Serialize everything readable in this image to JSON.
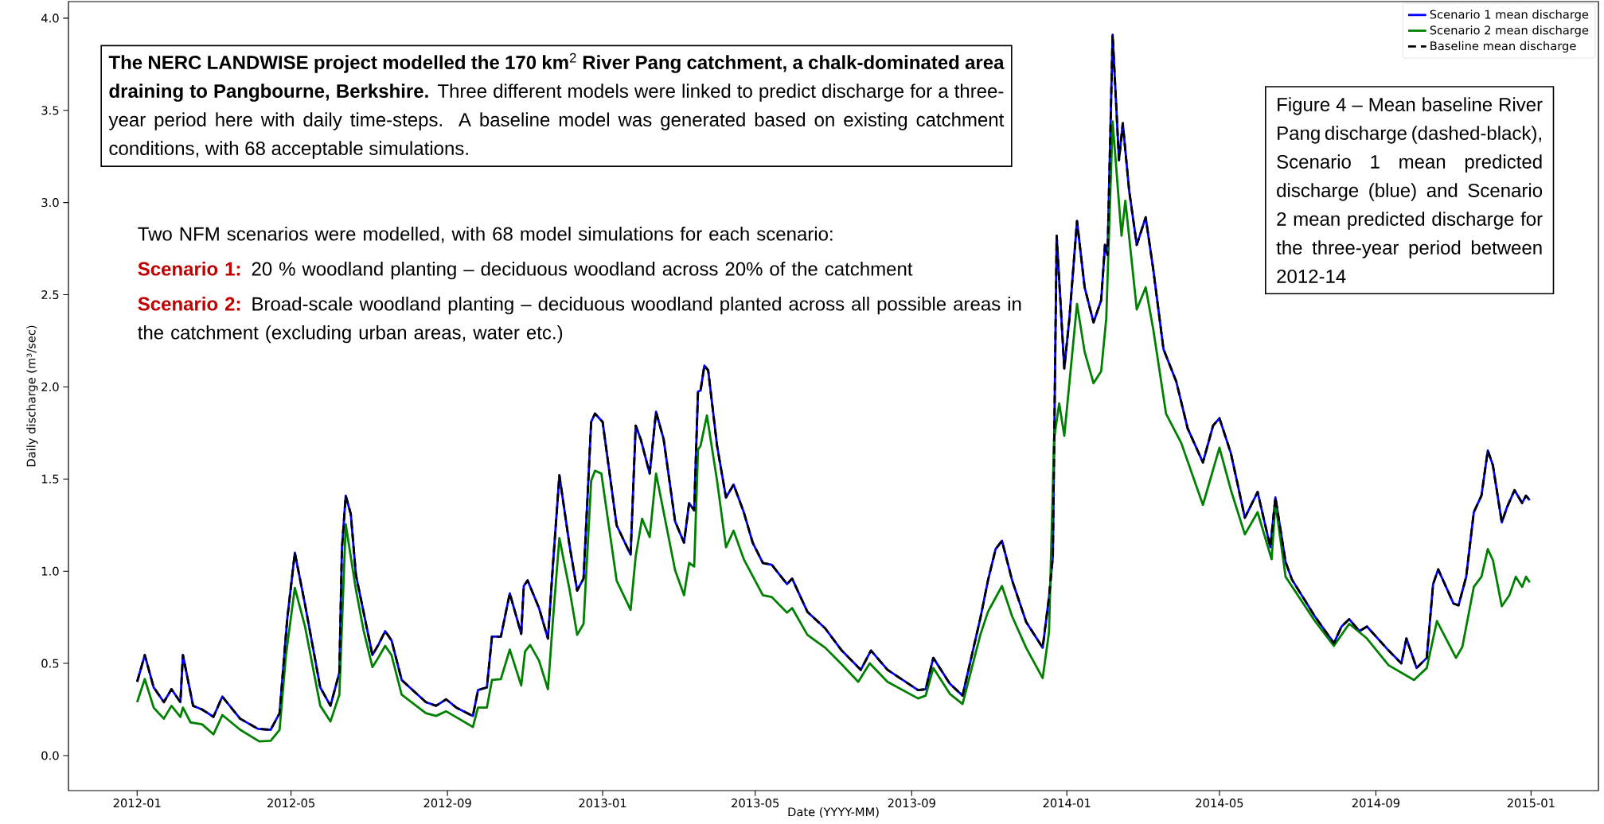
{
  "chart_data": {
    "type": "line",
    "xlabel": "Date (YYYY-MM)",
    "ylabel": "Daily discharge (m³/sec)",
    "xlim": [
      "2011-11-08",
      "2015-02-23"
    ],
    "ylim": [
      -0.19,
      4.09
    ],
    "xticks": [
      "2012-01",
      "2012-05",
      "2012-09",
      "2013-01",
      "2013-05",
      "2013-09",
      "2014-01",
      "2014-05",
      "2014-09",
      "2015-01"
    ],
    "yticks": [
      {
        "value": 0,
        "label": "0.0"
      },
      {
        "value": 0.5,
        "label": "0.5"
      },
      {
        "value": 1,
        "label": "1.0"
      },
      {
        "value": 1.5,
        "label": "1.5"
      },
      {
        "value": 2,
        "label": "2.0"
      },
      {
        "value": 2.5,
        "label": "2.5"
      },
      {
        "value": 3,
        "label": "3.0"
      },
      {
        "value": 3.5,
        "label": "3.5"
      },
      {
        "value": 4,
        "label": "4.0"
      }
    ],
    "legend": "top right",
    "x": [
      "2012-01-01",
      "2012-01-07",
      "2012-01-14",
      "2012-01-22",
      "2012-01-28",
      "2012-02-04",
      "2012-02-06",
      "2012-02-14",
      "2012-02-21",
      "2012-03-01",
      "2012-03-08",
      "2012-03-22",
      "2012-04-05",
      "2012-04-15",
      "2012-04-22",
      "2012-04-28",
      "2012-05-04",
      "2012-05-12",
      "2012-05-24",
      "2012-06-01",
      "2012-06-08",
      "2012-06-10",
      "2012-06-13",
      "2012-06-17",
      "2012-06-21",
      "2012-06-27",
      "2012-07-04",
      "2012-07-09",
      "2012-07-14",
      "2012-07-19",
      "2012-07-27",
      "2012-08-15",
      "2012-08-23",
      "2012-08-31",
      "2012-09-08",
      "2012-09-21",
      "2012-09-25",
      "2012-10-02",
      "2012-10-06",
      "2012-10-13",
      "2012-10-17",
      "2012-10-20",
      "2012-10-29",
      "2012-10-31",
      "2012-11-03",
      "2012-11-12",
      "2012-11-19",
      "2012-11-23",
      "2012-11-28",
      "2012-12-06",
      "2012-12-12",
      "2012-12-17",
      "2012-12-23",
      "2012-12-26",
      "2013-01-01",
      "2013-01-12",
      "2013-01-23",
      "2013-01-27",
      "2013-01-31",
      "2013-02-07",
      "2013-02-12",
      "2013-02-18",
      "2013-02-27",
      "2013-03-06",
      "2013-03-10",
      "2013-03-14",
      "2013-03-17",
      "2013-03-19",
      "2013-03-22",
      "2013-03-25",
      "2013-04-01",
      "2013-04-08",
      "2013-04-14",
      "2013-04-22",
      "2013-04-29",
      "2013-05-07",
      "2013-05-14",
      "2013-05-26",
      "2013-05-30",
      "2013-06-11",
      "2013-06-25",
      "2013-07-08",
      "2013-07-23",
      "2013-07-31",
      "2013-08-13",
      "2013-09-06",
      "2013-09-12",
      "2013-09-18",
      "2013-10-01",
      "2013-10-11",
      "2013-10-25",
      "2013-10-31",
      "2013-11-06",
      "2013-11-11",
      "2013-11-19",
      "2013-11-30",
      "2013-12-13",
      "2013-12-18",
      "2013-12-21",
      "2013-12-24",
      "2013-12-30",
      "2014-01-03",
      "2014-01-09",
      "2014-01-15",
      "2014-01-22",
      "2014-01-28",
      "2014-01-31",
      "2014-02-02",
      "2014-02-06",
      "2014-02-11",
      "2014-02-14",
      "2014-02-19",
      "2014-02-25",
      "2014-03-04",
      "2014-03-10",
      "2014-03-18",
      "2014-03-28",
      "2014-04-06",
      "2014-04-18",
      "2014-04-26",
      "2014-05-01",
      "2014-05-10",
      "2014-05-21",
      "2014-05-31",
      "2014-06-10",
      "2014-06-14",
      "2014-06-22",
      "2014-06-27",
      "2014-07-15",
      "2014-07-30",
      "2014-08-05",
      "2014-08-11",
      "2014-08-19",
      "2014-08-25",
      "2014-09-11",
      "2014-09-21",
      "2014-09-25",
      "2014-10-03",
      "2014-10-11",
      "2014-10-16",
      "2014-10-20",
      "2014-11-01",
      "2014-11-05",
      "2014-11-11",
      "2014-11-17",
      "2014-11-23",
      "2014-11-28",
      "2014-12-02",
      "2014-12-09",
      "2014-12-13",
      "2014-12-19",
      "2014-12-25",
      "2014-12-28",
      "2014-12-31"
    ],
    "series": [
      {
        "name": "Scenario 1 mean discharge",
        "color": "#0000ff",
        "line_style": "solid",
        "values": [
          0.4,
          0.545,
          0.37,
          0.29,
          0.36,
          0.29,
          0.545,
          0.27,
          0.25,
          0.21,
          0.32,
          0.2,
          0.145,
          0.14,
          0.23,
          0.74,
          1.1,
          0.82,
          0.37,
          0.27,
          0.45,
          1.12,
          1.41,
          1.31,
          0.98,
          0.78,
          0.545,
          0.605,
          0.675,
          0.625,
          0.41,
          0.29,
          0.27,
          0.305,
          0.26,
          0.215,
          0.355,
          0.37,
          0.645,
          0.645,
          0.78,
          0.88,
          0.66,
          0.92,
          0.95,
          0.8,
          0.635,
          1.04,
          1.52,
          1.14,
          0.895,
          0.96,
          1.81,
          1.855,
          1.81,
          1.25,
          1.09,
          1.79,
          1.715,
          1.53,
          1.865,
          1.715,
          1.27,
          1.155,
          1.37,
          1.33,
          1.975,
          1.98,
          2.115,
          2.09,
          1.68,
          1.4,
          1.47,
          1.32,
          1.155,
          1.045,
          1.035,
          0.93,
          0.96,
          0.78,
          0.69,
          0.57,
          0.465,
          0.57,
          0.465,
          0.355,
          0.36,
          0.53,
          0.39,
          0.325,
          0.745,
          0.95,
          1.12,
          1.165,
          0.95,
          0.725,
          0.585,
          0.86,
          1.08,
          2.82,
          2.1,
          2.37,
          2.9,
          2.54,
          2.35,
          2.47,
          2.77,
          2.715,
          3.91,
          3.23,
          3.43,
          3.065,
          2.77,
          2.92,
          2.635,
          2.205,
          2.03,
          1.775,
          1.59,
          1.79,
          1.83,
          1.64,
          1.29,
          1.43,
          1.13,
          1.4,
          1.05,
          0.955,
          0.755,
          0.61,
          0.7,
          0.74,
          0.675,
          0.7,
          0.57,
          0.5,
          0.635,
          0.475,
          0.53,
          0.93,
          1.01,
          0.825,
          0.815,
          0.97,
          1.32,
          1.41,
          1.655,
          1.575,
          1.265,
          1.345,
          1.44,
          1.37,
          1.41,
          1.385
        ]
      },
      {
        "name": "Scenario 2 mean discharge",
        "color": "#008000",
        "line_style": "solid",
        "x": [
          "2012-01-01",
          "2012-01-07",
          "2012-01-14",
          "2012-01-22",
          "2012-01-28",
          "2012-02-04",
          "2012-02-06",
          "2012-02-12",
          "2012-02-21",
          "2012-03-01",
          "2012-03-08",
          "2012-03-22",
          "2012-04-06",
          "2012-04-15",
          "2012-04-22",
          "2012-04-27",
          "2012-05-04",
          "2012-05-12",
          "2012-05-24",
          "2012-06-01",
          "2012-06-08",
          "2012-06-13",
          "2012-06-21",
          "2012-06-27",
          "2012-07-04",
          "2012-07-09",
          "2012-07-14",
          "2012-07-19",
          "2012-07-27",
          "2012-08-15",
          "2012-08-23",
          "2012-08-31",
          "2012-09-10",
          "2012-09-21",
          "2012-09-25",
          "2012-10-02",
          "2012-10-06",
          "2012-10-13",
          "2012-10-20",
          "2012-10-29",
          "2012-11-01",
          "2012-11-05",
          "2012-11-12",
          "2012-11-19",
          "2012-11-23",
          "2012-11-28",
          "2012-12-06",
          "2012-12-12",
          "2012-12-17",
          "2012-12-23",
          "2012-12-26",
          "2012-12-31",
          "2013-01-12",
          "2013-01-23",
          "2013-01-27",
          "2013-02-01",
          "2013-02-07",
          "2013-02-12",
          "2013-02-27",
          "2013-03-06",
          "2013-03-10",
          "2013-03-14",
          "2013-03-17",
          "2013-03-19",
          "2013-03-24",
          "2013-04-01",
          "2013-04-08",
          "2013-04-14",
          "2013-04-22",
          "2013-05-07",
          "2013-05-14",
          "2013-05-26",
          "2013-05-30",
          "2013-06-11",
          "2013-06-25",
          "2013-07-08",
          "2013-07-21",
          "2013-07-30",
          "2013-08-13",
          "2013-09-06",
          "2013-09-12",
          "2013-09-18",
          "2013-10-01",
          "2013-10-11",
          "2013-10-25",
          "2013-10-31",
          "2013-11-11",
          "2013-11-19",
          "2013-11-30",
          "2013-12-13",
          "2013-12-18",
          "2013-12-22",
          "2013-12-26",
          "2013-12-30",
          "2014-01-03",
          "2014-01-09",
          "2014-01-15",
          "2014-01-22",
          "2014-01-28",
          "2014-02-01",
          "2014-02-06",
          "2014-02-13",
          "2014-02-16",
          "2014-02-25",
          "2014-03-04",
          "2014-03-10",
          "2014-03-20",
          "2014-04-01",
          "2014-04-18",
          "2014-05-01",
          "2014-05-10",
          "2014-05-21",
          "2014-05-31",
          "2014-06-11",
          "2014-06-14",
          "2014-06-22",
          "2014-07-15",
          "2014-07-30",
          "2014-08-11",
          "2014-08-25",
          "2014-09-11",
          "2014-10-01",
          "2014-10-11",
          "2014-10-19",
          "2014-11-03",
          "2014-11-08",
          "2014-11-17",
          "2014-11-23",
          "2014-11-28",
          "2014-12-02",
          "2014-12-09",
          "2014-12-15",
          "2014-12-20",
          "2014-12-25",
          "2014-12-28",
          "2014-12-31"
        ],
        "values": [
          0.29,
          0.415,
          0.26,
          0.2,
          0.27,
          0.21,
          0.26,
          0.18,
          0.17,
          0.115,
          0.22,
          0.14,
          0.077,
          0.08,
          0.14,
          0.545,
          0.91,
          0.7,
          0.27,
          0.185,
          0.33,
          1.255,
          0.9,
          0.68,
          0.48,
          0.535,
          0.595,
          0.545,
          0.33,
          0.23,
          0.215,
          0.24,
          0.2,
          0.155,
          0.26,
          0.26,
          0.41,
          0.415,
          0.575,
          0.38,
          0.565,
          0.6,
          0.515,
          0.36,
          0.74,
          1.18,
          0.9,
          0.655,
          0.715,
          1.49,
          1.545,
          1.53,
          0.95,
          0.79,
          1.08,
          1.285,
          1.185,
          1.53,
          1.005,
          0.87,
          1.045,
          1.025,
          1.66,
          1.68,
          1.845,
          1.49,
          1.13,
          1.22,
          1.065,
          0.87,
          0.86,
          0.775,
          0.8,
          0.655,
          0.585,
          0.495,
          0.4,
          0.5,
          0.4,
          0.31,
          0.325,
          0.475,
          0.335,
          0.28,
          0.655,
          0.78,
          0.92,
          0.755,
          0.585,
          0.42,
          0.67,
          1.72,
          1.91,
          1.735,
          2.02,
          2.45,
          2.19,
          2.02,
          2.085,
          2.37,
          3.44,
          2.82,
          3.01,
          2.42,
          2.54,
          2.31,
          1.855,
          1.695,
          1.36,
          1.67,
          1.44,
          1.2,
          1.32,
          1.065,
          1.37,
          0.97,
          0.73,
          0.595,
          0.715,
          0.635,
          0.49,
          0.41,
          0.475,
          0.73,
          0.53,
          0.59,
          0.915,
          0.97,
          1.12,
          1.06,
          0.81,
          0.87,
          0.97,
          0.915,
          0.97,
          0.94
        ]
      },
      {
        "name": "Baseline mean discharge",
        "color": "#000000",
        "line_style": "dashed",
        "values": [
          0.4,
          0.545,
          0.37,
          0.29,
          0.36,
          0.29,
          0.545,
          0.27,
          0.25,
          0.21,
          0.32,
          0.2,
          0.145,
          0.14,
          0.23,
          0.74,
          1.1,
          0.82,
          0.37,
          0.27,
          0.45,
          1.12,
          1.41,
          1.31,
          0.98,
          0.78,
          0.545,
          0.605,
          0.675,
          0.625,
          0.41,
          0.29,
          0.27,
          0.305,
          0.26,
          0.215,
          0.355,
          0.37,
          0.645,
          0.645,
          0.78,
          0.88,
          0.66,
          0.92,
          0.95,
          0.8,
          0.635,
          1.04,
          1.52,
          1.14,
          0.895,
          0.96,
          1.81,
          1.855,
          1.81,
          1.25,
          1.09,
          1.79,
          1.715,
          1.53,
          1.865,
          1.715,
          1.27,
          1.155,
          1.37,
          1.33,
          1.975,
          1.98,
          2.115,
          2.09,
          1.68,
          1.4,
          1.47,
          1.32,
          1.155,
          1.045,
          1.035,
          0.93,
          0.96,
          0.78,
          0.69,
          0.57,
          0.465,
          0.57,
          0.465,
          0.355,
          0.36,
          0.53,
          0.39,
          0.325,
          0.745,
          0.95,
          1.12,
          1.165,
          0.95,
          0.725,
          0.585,
          0.86,
          1.08,
          2.82,
          2.1,
          2.37,
          2.9,
          2.54,
          2.35,
          2.47,
          2.77,
          2.715,
          3.91,
          3.23,
          3.43,
          3.065,
          2.77,
          2.92,
          2.635,
          2.205,
          2.03,
          1.775,
          1.59,
          1.79,
          1.83,
          1.64,
          1.29,
          1.43,
          1.13,
          1.4,
          1.05,
          0.955,
          0.755,
          0.61,
          0.7,
          0.74,
          0.675,
          0.7,
          0.57,
          0.5,
          0.635,
          0.475,
          0.53,
          0.93,
          1.01,
          0.825,
          0.815,
          0.97,
          1.32,
          1.41,
          1.655,
          1.575,
          1.265,
          1.345,
          1.44,
          1.37,
          1.41,
          1.385
        ]
      }
    ],
    "annotations": [
      "**The NERC LANDWISE project modelled the 170 km**$^{2}$ **River Pang catchment, a chalk-dominated area draining to Pangbourne, Berkshire.** Three different models were linked to predict discharge for a three-year period here with daily time-steps. A baseline model was generated based on existing catchment conditions, with 68 acceptable simulations.",
      "Two NFM scenarios were modelled, with 68 model simulations for each scenario:",
      "Scenario 1:",
      "20 % woodland planting – deciduous woodland across 20% of the catchment",
      "Scenario 2:",
      "Broad-scale woodland planting – deciduous woodland planted across all possible areas in the catchment (excluding urban areas, water etc.)",
      "Figure 4 – Mean baseline River Pang discharge (dashed-black), Scenario 1 mean predicted discharge (blue) and Scenario 2 mean predicted discharge for the three-year period between 2012-14"
    ]
  }
}
